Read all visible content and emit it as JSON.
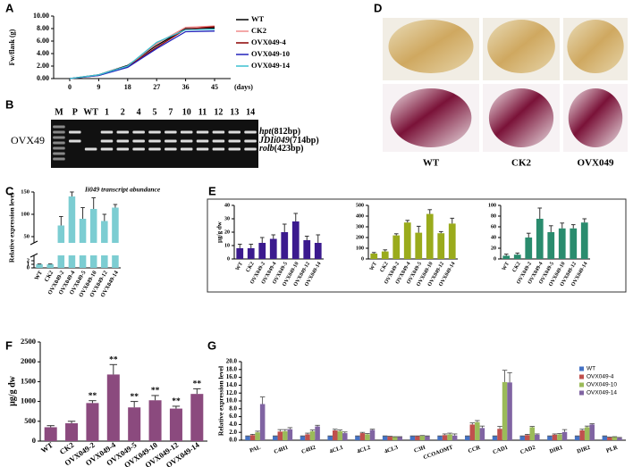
{
  "chart_data": [
    {
      "panel": "A",
      "type": "line",
      "y_label": "Fw/flask (g)",
      "x_unit": "(days)",
      "x": [
        0,
        9,
        18,
        27,
        36,
        45
      ],
      "xlim": [
        -5,
        50
      ],
      "xticks": [
        0,
        9,
        18,
        27,
        36,
        45
      ],
      "ylim": [
        0,
        10
      ],
      "yticks": [
        {
          "value": 0,
          "label": "0.00"
        },
        {
          "value": 2,
          "label": "2.00"
        },
        {
          "value": 4,
          "label": "4.00"
        },
        {
          "value": 6,
          "label": "6.00"
        },
        {
          "value": 8,
          "label": "8.00"
        },
        {
          "value": 10,
          "label": "10.00"
        }
      ],
      "series": [
        {
          "name": "WT",
          "color": "#000000",
          "values": [
            0,
            0.6,
            2.1,
            5.3,
            8.0,
            8.1
          ]
        },
        {
          "name": "CK2",
          "color": "#f08a8a",
          "values": [
            0,
            0.6,
            2.0,
            5.6,
            8.2,
            8.4
          ]
        },
        {
          "name": "OVX049-4",
          "color": "#8b0000",
          "values": [
            0,
            0.5,
            1.9,
            5.0,
            7.9,
            8.3
          ]
        },
        {
          "name": "OVX049-10",
          "color": "#2222bb",
          "values": [
            0,
            0.5,
            1.8,
            4.8,
            7.5,
            7.6
          ]
        },
        {
          "name": "OVX049-14",
          "color": "#3cc0d0",
          "values": [
            0,
            0.6,
            2.0,
            5.8,
            7.8,
            7.9
          ]
        }
      ]
    },
    {
      "panel": "B",
      "type": "gel",
      "row_label": "OVX49",
      "lanes": [
        "M",
        "P",
        "WT",
        "1",
        "2",
        "4",
        "5",
        "7",
        "10",
        "11",
        "12",
        "13",
        "14"
      ],
      "bands": [
        {
          "gene": "hpt",
          "size": "(812bp)"
        },
        {
          "gene": "JDIi049",
          "size": "(714bp)"
        },
        {
          "gene": "rolb",
          "size": "(423bp)"
        }
      ]
    },
    {
      "panel": "C",
      "type": "bar",
      "title": "Ii049 transcript abundance",
      "y_label": "Relative expression level",
      "categories": [
        "WT",
        "CK2",
        "OVX049-2",
        "OVX049-4",
        "OVX049-5",
        "OVX049-10",
        "OVX049-12",
        "OVX049-14"
      ],
      "values": [
        1,
        1,
        75,
        140,
        90,
        112,
        85,
        115
      ],
      "errors": [
        0.1,
        0.1,
        20,
        10,
        25,
        25,
        15,
        7
      ],
      "color": "#7ccdd2",
      "ylim": [
        0,
        150
      ],
      "yticks": [
        0,
        1,
        2,
        50,
        100,
        150
      ]
    },
    {
      "panel": "D",
      "type": "photo",
      "columns": [
        "WT",
        "CK2",
        "OVX049"
      ]
    },
    {
      "panel": "E",
      "type": "bar_group",
      "y_label": "μg/g dw",
      "charts": [
        {
          "categories": [
            "WT",
            "CK2",
            "OVX049-2",
            "OVX049-4",
            "OVX049-5",
            "OVX049-10",
            "OVX049-12",
            "OVX049-14"
          ],
          "values": [
            8,
            8,
            12,
            15,
            20,
            28,
            14,
            12
          ],
          "errors": [
            3,
            3,
            4,
            3,
            6,
            6,
            3,
            6
          ],
          "color": "#3b1a8e",
          "ylim": [
            0,
            40
          ],
          "yticks": [
            0,
            10,
            20,
            30,
            40
          ]
        },
        {
          "categories": [
            "WT",
            "CK2",
            "OVX049-2",
            "OVX049-4",
            "OVX049-5",
            "OVX049-10",
            "OVX049-12",
            "OVX049-14"
          ],
          "values": [
            50,
            70,
            220,
            340,
            245,
            420,
            240,
            330
          ],
          "errors": [
            10,
            15,
            15,
            20,
            60,
            40,
            15,
            50
          ],
          "color": "#9aab1c",
          "ylim": [
            0,
            500
          ],
          "yticks": [
            0,
            100,
            200,
            300,
            400,
            500
          ]
        },
        {
          "categories": [
            "WT",
            "CK2",
            "OVX049-2",
            "OVX049-4",
            "OVX049-5",
            "OVX049-10",
            "OVX049-12",
            "OVX049-14"
          ],
          "values": [
            6,
            8,
            40,
            75,
            50,
            57,
            57,
            68
          ],
          "errors": [
            3,
            3,
            8,
            20,
            12,
            10,
            7,
            7
          ],
          "color": "#2a8c6e",
          "ylim": [
            0,
            100
          ],
          "yticks": [
            0,
            20,
            40,
            60,
            80,
            100
          ]
        }
      ]
    },
    {
      "panel": "F",
      "type": "bar",
      "y_label": "μg/g dw",
      "categories": [
        "WT",
        "CK2",
        "OVX049-2",
        "OVX049-4",
        "OVX049-5",
        "OVX049-10",
        "OVX049-12",
        "OVX049-14"
      ],
      "values": [
        350,
        450,
        960,
        1680,
        850,
        1030,
        820,
        1190
      ],
      "errors": [
        40,
        50,
        60,
        250,
        150,
        120,
        60,
        130
      ],
      "significance": [
        null,
        null,
        "**",
        "**",
        "**",
        "**",
        "**",
        "**"
      ],
      "color": "#8b4a7e",
      "ylim": [
        0,
        2500
      ],
      "yticks": [
        0,
        500,
        1000,
        1500,
        2000,
        2500
      ]
    },
    {
      "panel": "G",
      "type": "grouped_bar",
      "y_label": "Relative expression level",
      "legend": "upper right",
      "categories": [
        "PAL",
        "C4H1",
        "C4H2",
        "4CL1",
        "4CL2",
        "4CL3",
        "C3H",
        "CCOAOMT",
        "CCR",
        "CAD1",
        "CAD2",
        "DIR1",
        "DIR2",
        "PLR"
      ],
      "ylim": [
        0,
        20
      ],
      "yticks": [
        {
          "value": 0,
          "label": "0.0"
        },
        {
          "value": 2,
          "label": "2.0"
        },
        {
          "value": 4,
          "label": "4.0"
        },
        {
          "value": 6,
          "label": "6.0"
        },
        {
          "value": 8,
          "label": "8.0"
        },
        {
          "value": 10,
          "label": "10.0"
        },
        {
          "value": 12,
          "label": "12.0"
        },
        {
          "value": 14,
          "label": "14.0"
        },
        {
          "value": 16,
          "label": "16.0"
        },
        {
          "value": 18,
          "label": "18.0"
        },
        {
          "value": 20,
          "label": "20.0"
        }
      ],
      "series": [
        {
          "name": "WT",
          "color": "#4472c4",
          "values": [
            1,
            1,
            1,
            1,
            1,
            1,
            1,
            1,
            1,
            1,
            1,
            1,
            1,
            1
          ],
          "errors": [
            0.1,
            0.1,
            0.1,
            0.1,
            0.1,
            0.1,
            0.1,
            0.1,
            0.1,
            0.1,
            0.1,
            0.1,
            0.1,
            0.1
          ]
        },
        {
          "name": "OVX049-4",
          "color": "#c0504d",
          "values": [
            1.3,
            2.2,
            1.5,
            2.5,
            1.8,
            0.9,
            1.0,
            1.3,
            4.0,
            2.9,
            1.3,
            1.4,
            2.5,
            0.7
          ],
          "errors": [
            0.2,
            0.5,
            0.3,
            0.3,
            0.2,
            0.1,
            0.1,
            0.3,
            0.4,
            0.6,
            0.2,
            0.2,
            0.3,
            0.1
          ]
        },
        {
          "name": "OVX049-10",
          "color": "#9bbb59",
          "values": [
            2.0,
            2.3,
            2.3,
            2.3,
            1.5,
            0.8,
            1.1,
            1.5,
            4.6,
            14.8,
            3.3,
            1.5,
            3.3,
            0.8
          ],
          "errors": [
            0.3,
            0.4,
            0.3,
            0.3,
            0.2,
            0.1,
            0.1,
            0.3,
            0.4,
            3.0,
            0.2,
            0.2,
            0.3,
            0.1
          ]
        },
        {
          "name": "OVX049-14",
          "color": "#8064a2",
          "values": [
            9.2,
            2.8,
            3.5,
            1.8,
            2.6,
            0.8,
            1.0,
            1.2,
            3.1,
            14.7,
            1.4,
            2.1,
            4.0,
            0.6
          ],
          "errors": [
            1.8,
            0.4,
            0.3,
            0.3,
            0.2,
            0.1,
            0.1,
            0.4,
            0.5,
            2.5,
            0.2,
            0.6,
            0.2,
            0.1
          ]
        }
      ]
    }
  ]
}
